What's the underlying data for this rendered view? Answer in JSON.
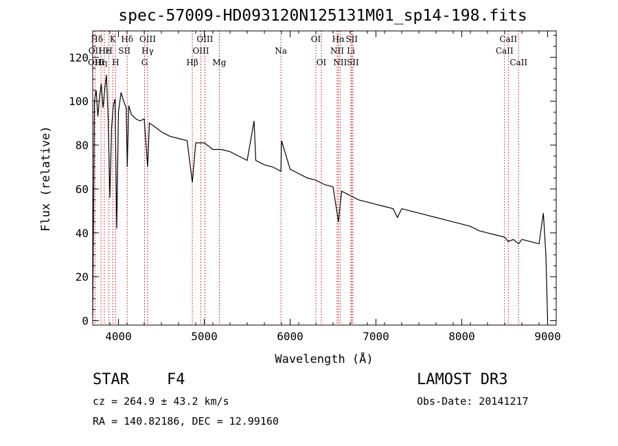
{
  "chart_data": {
    "type": "line",
    "title": "spec-57009-HD093120N125131M01_sp14-198.fits",
    "xlabel": "Wavelength (Å)",
    "ylabel": "Flux (relative)",
    "xlim": [
      3700,
      9100
    ],
    "ylim": [
      -2,
      132
    ],
    "xticks": [
      4000,
      5000,
      6000,
      7000,
      8000,
      9000
    ],
    "yticks": [
      0,
      20,
      40,
      60,
      80,
      100,
      120
    ],
    "series": [
      {
        "name": "spectrum",
        "color": "#000000",
        "x": [
          3700,
          3720,
          3740,
          3760,
          3780,
          3800,
          3820,
          3840,
          3860,
          3880,
          3900,
          3920,
          3940,
          3960,
          3980,
          4000,
          4030,
          4060,
          4090,
          4102,
          4120,
          4150,
          4200,
          4250,
          4300,
          4340,
          4360,
          4400,
          4500,
          4600,
          4700,
          4800,
          4861,
          4900,
          5000,
          5100,
          5200,
          5300,
          5400,
          5500,
          5580,
          5600,
          5700,
          5800,
          5893,
          5900,
          6000,
          6100,
          6200,
          6300,
          6400,
          6500,
          6563,
          6600,
          6700,
          6800,
          6900,
          7000,
          7100,
          7200,
          7250,
          7300,
          7400,
          7500,
          7600,
          7700,
          7800,
          7900,
          8000,
          8100,
          8200,
          8300,
          8400,
          8500,
          8542,
          8600,
          8662,
          8700,
          8800,
          8900,
          8950,
          8980,
          9000
        ],
        "y": [
          2,
          100,
          105,
          93,
          102,
          108,
          97,
          105,
          112,
          92,
          56,
          88,
          98,
          101,
          42,
          95,
          104,
          100,
          97,
          70,
          98,
          94,
          92,
          91,
          92,
          70,
          90,
          89,
          86,
          84,
          83,
          82,
          63,
          81,
          81,
          78,
          78,
          77,
          75,
          73,
          91,
          73,
          71,
          70,
          68,
          82,
          69,
          67,
          65,
          64,
          62,
          61,
          45,
          59,
          57,
          55,
          54,
          53,
          52,
          51,
          47,
          51,
          50,
          49,
          48,
          47,
          46,
          45,
          44,
          43,
          41,
          40,
          39,
          38,
          36,
          37,
          35,
          37,
          36,
          35,
          49,
          30,
          0
        ]
      }
    ],
    "line_markers": [
      {
        "label": "Hδ",
        "x": 3750,
        "row": 1
      },
      {
        "label": "K",
        "x": 3934,
        "row": 1
      },
      {
        "label": "Hδ",
        "x": 4102,
        "row": 1
      },
      {
        "label": "OIII",
        "x": 4340,
        "row": 1
      },
      {
        "label": "OIII",
        "x": 5007,
        "row": 1
      },
      {
        "label": "OI",
        "x": 6300,
        "row": 1
      },
      {
        "label": "Hα",
        "x": 6563,
        "row": 1
      },
      {
        "label": "SII",
        "x": 6718,
        "row": 1
      },
      {
        "label": "CaII",
        "x": 8542,
        "row": 1
      },
      {
        "label": "OII",
        "x": 3727,
        "row": 2
      },
      {
        "label": "Hε",
        "x": 3835,
        "row": 2
      },
      {
        "label": "H",
        "x": 3889,
        "row": 2
      },
      {
        "label": "SII",
        "x": 4070,
        "row": 2
      },
      {
        "label": "Hγ",
        "x": 4340,
        "row": 2
      },
      {
        "label": "OIII",
        "x": 4960,
        "row": 2
      },
      {
        "label": "Na",
        "x": 5893,
        "row": 2
      },
      {
        "label": "NII",
        "x": 6548,
        "row": 2
      },
      {
        "label": "Li",
        "x": 6708,
        "row": 2
      },
      {
        "label": "CaII",
        "x": 8498,
        "row": 2
      },
      {
        "label": "OIII",
        "x": 3740,
        "row": 3
      },
      {
        "label": "Hη",
        "x": 3797,
        "row": 3
      },
      {
        "label": "H",
        "x": 3968,
        "row": 3
      },
      {
        "label": "G",
        "x": 4304,
        "row": 3
      },
      {
        "label": "Hβ",
        "x": 4861,
        "row": 3
      },
      {
        "label": "Mg",
        "x": 5175,
        "row": 3
      },
      {
        "label": "OI",
        "x": 6364,
        "row": 3
      },
      {
        "label": "NII",
        "x": 6583,
        "row": 3
      },
      {
        "label": "SII",
        "x": 6731,
        "row": 3
      },
      {
        "label": "CaII",
        "x": 8662,
        "row": 3
      }
    ],
    "marker_lines_x": [
      3727,
      3797,
      3835,
      3889,
      3934,
      3968,
      4102,
      4304,
      4340,
      4861,
      4960,
      5007,
      5175,
      5893,
      6300,
      6364,
      6548,
      6563,
      6583,
      6708,
      6718,
      6731,
      8498,
      8542,
      8662
    ],
    "marker_color": "#cc0000"
  },
  "info": {
    "object_class": "STAR",
    "subclass": "F4",
    "survey": "LAMOST DR3",
    "redshift": "cz = 264.9 ± 43.2 km/s",
    "obs_date": "Obs-Date: 20141217",
    "coords": "RA = 140.82186, DEC =  12.99160"
  }
}
